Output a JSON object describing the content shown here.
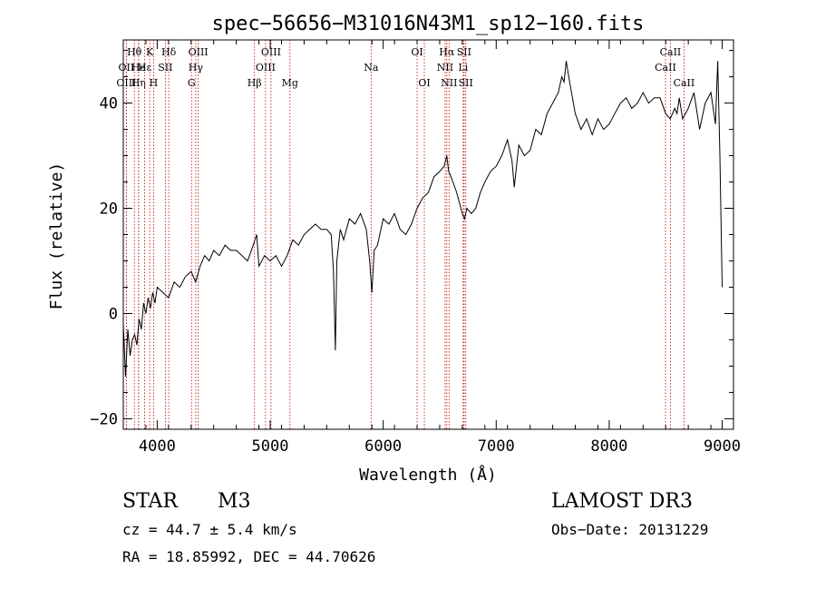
{
  "chart_data": {
    "type": "line",
    "title": "spec−56656−M31016N43M1_sp12−160.fits",
    "xlabel": "Wavelength (Å)",
    "ylabel": "Flux (relative)",
    "xlim": [
      3700,
      9100
    ],
    "ylim": [
      -22,
      52
    ],
    "xticks": [
      4000,
      5000,
      6000,
      7000,
      8000,
      9000
    ],
    "yticks": [
      -20,
      0,
      20,
      40
    ],
    "xtick_labels": [
      "4000",
      "5000",
      "6000",
      "7000",
      "8000",
      "9000"
    ],
    "ytick_labels": [
      "−20",
      "0",
      "20",
      "40"
    ],
    "series": [
      {
        "name": "flux",
        "x": [
          3700,
          3720,
          3740,
          3760,
          3780,
          3800,
          3820,
          3840,
          3860,
          3880,
          3900,
          3920,
          3940,
          3960,
          3980,
          4000,
          4050,
          4100,
          4150,
          4200,
          4250,
          4300,
          4340,
          4380,
          4420,
          4460,
          4500,
          4550,
          4600,
          4650,
          4700,
          4750,
          4800,
          4850,
          4880,
          4900,
          4950,
          5000,
          5050,
          5100,
          5150,
          5200,
          5250,
          5300,
          5350,
          5400,
          5450,
          5500,
          5540,
          5560,
          5577,
          5590,
          5620,
          5650,
          5700,
          5750,
          5800,
          5850,
          5880,
          5900,
          5910,
          5920,
          5950,
          6000,
          6050,
          6100,
          6150,
          6200,
          6250,
          6300,
          6350,
          6400,
          6450,
          6500,
          6540,
          6563,
          6580,
          6600,
          6650,
          6700,
          6720,
          6740,
          6780,
          6820,
          6860,
          6900,
          6950,
          7000,
          7050,
          7100,
          7140,
          7160,
          7200,
          7250,
          7300,
          7350,
          7400,
          7450,
          7500,
          7550,
          7580,
          7600,
          7620,
          7650,
          7700,
          7750,
          7800,
          7850,
          7900,
          7950,
          8000,
          8050,
          8100,
          8150,
          8200,
          8250,
          8300,
          8350,
          8400,
          8450,
          8500,
          8540,
          8580,
          8600,
          8620,
          8650,
          8700,
          8750,
          8800,
          8850,
          8900,
          8940,
          8960,
          8980,
          9000
        ],
        "y": [
          -2,
          -12,
          -3,
          -8,
          -5,
          -4,
          -6,
          -1,
          -3,
          2,
          0,
          3,
          1,
          4,
          2,
          5,
          4,
          3,
          6,
          5,
          7,
          8,
          6,
          9,
          11,
          10,
          12,
          11,
          13,
          12,
          12,
          11,
          10,
          13,
          15,
          9,
          11,
          10,
          11,
          9,
          11,
          14,
          13,
          15,
          16,
          17,
          16,
          16,
          15,
          8,
          -7,
          10,
          16,
          14,
          18,
          17,
          19,
          16,
          10,
          4,
          8,
          12,
          13,
          18,
          17,
          19,
          16,
          15,
          17,
          20,
          22,
          23,
          26,
          27,
          28,
          30,
          27,
          26,
          23,
          19,
          18,
          20,
          19,
          20,
          23,
          25,
          27,
          28,
          30,
          33,
          29,
          24,
          32,
          30,
          31,
          35,
          34,
          38,
          40,
          42,
          45,
          44,
          48,
          44,
          38,
          35,
          37,
          34,
          37,
          35,
          36,
          38,
          40,
          41,
          39,
          40,
          42,
          40,
          41,
          41,
          38,
          37,
          39,
          38,
          41,
          37,
          39,
          42,
          35,
          40,
          42,
          36,
          48,
          30,
          5
        ]
      }
    ],
    "lines": [
      {
        "label": "Hθ",
        "x": 3798,
        "row": 1
      },
      {
        "label": "OII",
        "x": 3727,
        "row": 2
      },
      {
        "label": "OIII",
        "x": 3727,
        "row": 3
      },
      {
        "label": "He",
        "x": 3835,
        "row": 2
      },
      {
        "label": "Hη",
        "x": 3835,
        "row": 3
      },
      {
        "label": "K",
        "x": 3934,
        "row": 1
      },
      {
        "label": "Hε",
        "x": 3889,
        "row": 2
      },
      {
        "label": "H",
        "x": 3968,
        "row": 3
      },
      {
        "label": "SII",
        "x": 4072,
        "row": 2
      },
      {
        "label": "Hδ",
        "x": 4102,
        "row": 1
      },
      {
        "label": "OIII",
        "x": 4363,
        "row": 1
      },
      {
        "label": "Hγ",
        "x": 4341,
        "row": 2
      },
      {
        "label": "G",
        "x": 4304,
        "row": 3
      },
      {
        "label": "Hβ",
        "x": 4861,
        "row": 3
      },
      {
        "label": "OIII",
        "x": 5007,
        "row": 1
      },
      {
        "label": "OIII",
        "x": 4959,
        "row": 2
      },
      {
        "label": "Mg",
        "x": 5175,
        "row": 3
      },
      {
        "label": "Na",
        "x": 5893,
        "row": 2
      },
      {
        "label": "OI",
        "x": 6300,
        "row": 1
      },
      {
        "label": "OI",
        "x": 6364,
        "row": 3
      },
      {
        "label": "Hα",
        "x": 6563,
        "row": 1
      },
      {
        "label": "NII",
        "x": 6548,
        "row": 2
      },
      {
        "label": "NII",
        "x": 6583,
        "row": 3
      },
      {
        "label": "SII",
        "x": 6716,
        "row": 1
      },
      {
        "label": "Li",
        "x": 6708,
        "row": 2
      },
      {
        "label": "SII",
        "x": 6731,
        "row": 3
      },
      {
        "label": "CaII",
        "x": 8542,
        "row": 1
      },
      {
        "label": "CaII",
        "x": 8498,
        "row": 2
      },
      {
        "label": "CaII",
        "x": 8662,
        "row": 3
      }
    ]
  },
  "info": {
    "object_type": "STAR",
    "subclass": "M3",
    "survey": "LAMOST DR3",
    "cz": "cz = 44.7 ± 5.4 km/s",
    "obs_date": "Obs−Date: 20131229",
    "coords": "RA =  18.85992, DEC =  44.70626"
  }
}
